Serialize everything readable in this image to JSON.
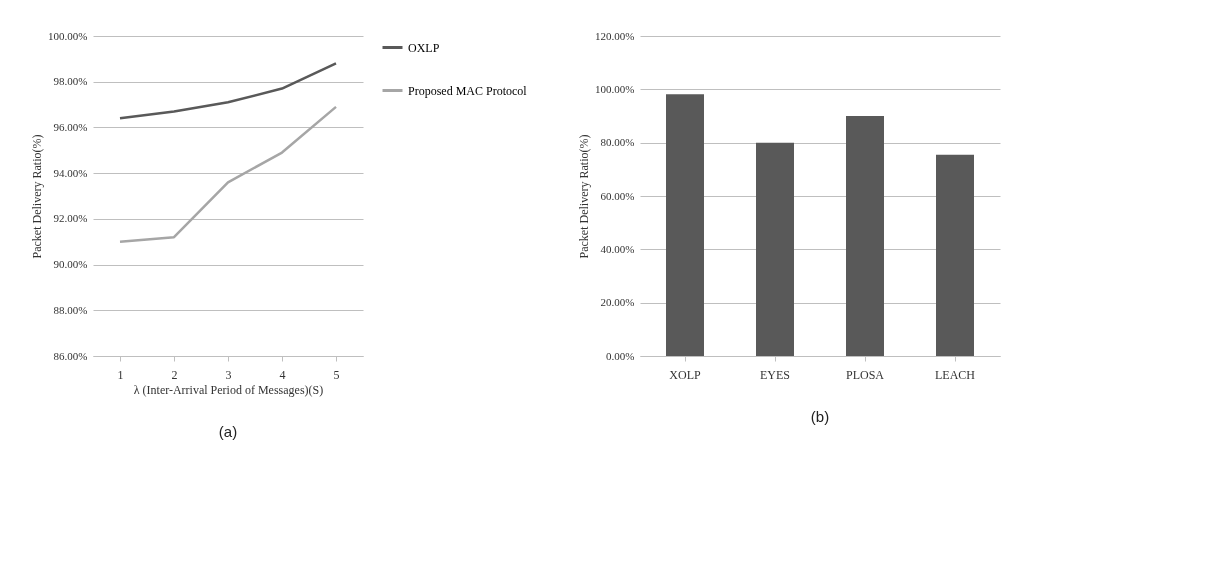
{
  "chart_data": [
    {
      "type": "line",
      "xlabel": "λ (Inter-Arrival Period of Messages)(S)",
      "ylabel": "Packet Delivery Ratio(%)",
      "categories": [
        "1",
        "2",
        "3",
        "4",
        "5"
      ],
      "series": [
        {
          "name": "OXLP",
          "color": "#595959",
          "values": [
            96.4,
            96.7,
            97.1,
            97.7,
            98.8
          ]
        },
        {
          "name": "Proposed MAC Protocol",
          "color": "#a6a6a6",
          "values": [
            91.0,
            91.2,
            93.6,
            94.9,
            96.9
          ]
        }
      ],
      "ylim": [
        86,
        100
      ],
      "yticks": [
        {
          "value": 86,
          "label": "86.00%"
        },
        {
          "value": 88,
          "label": "88.00%"
        },
        {
          "value": 90,
          "label": "90.00%"
        },
        {
          "value": 92,
          "label": "92.00%"
        },
        {
          "value": 94,
          "label": "94.00%"
        },
        {
          "value": 96,
          "label": "96.00%"
        },
        {
          "value": 98,
          "label": "98.00%"
        },
        {
          "value": 100,
          "label": "100.00%"
        }
      ],
      "grid": "y",
      "legend": "right",
      "marker": "none",
      "line_style": "solid",
      "annotations": [
        "(a)"
      ]
    },
    {
      "type": "bar",
      "ylabel": "Packet Delivery Ratio(%)",
      "categories": [
        "XOLP",
        "EYES",
        "PLOSA",
        "LEACH"
      ],
      "values": [
        98.2,
        80.0,
        90.0,
        75.5
      ],
      "color": "#595959",
      "ylim": [
        0,
        120
      ],
      "yticks": [
        {
          "value": 0,
          "label": "0.00%"
        },
        {
          "value": 20,
          "label": "20.00%"
        },
        {
          "value": 40,
          "label": "40.00%"
        },
        {
          "value": 60,
          "label": "60.00%"
        },
        {
          "value": 80,
          "label": "80.00%"
        },
        {
          "value": 100,
          "label": "100.00%"
        },
        {
          "value": 120,
          "label": "120.00%"
        }
      ],
      "grid": "y",
      "annotations": [
        "(b)"
      ]
    }
  ]
}
